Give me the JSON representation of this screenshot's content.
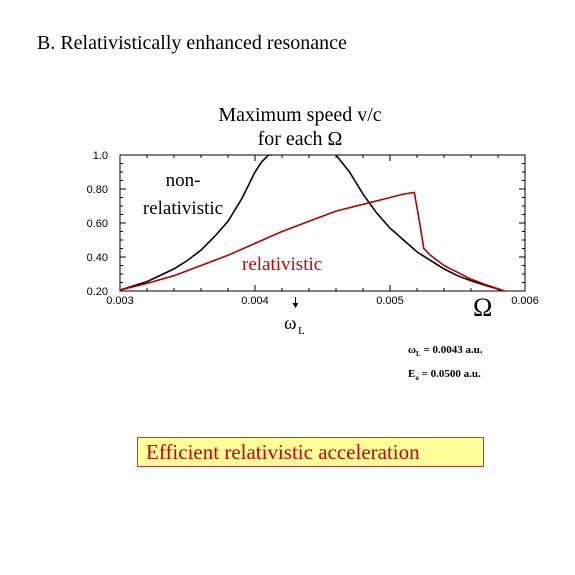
{
  "slide": {
    "title": "B. Relativistically  enhanced resonance",
    "callout": "Efficient relativistic acceleration"
  },
  "params": {
    "omega_L_symbol": "ω",
    "omega_L_sub": "L",
    "omega_L_value": "= 0.0043 a.u.",
    "E0_symbol": "E",
    "E0_sub": "o",
    "E0_value": "= 0.0500 a.u."
  },
  "chart_data": {
    "type": "line",
    "title_lines": [
      "Maximum speed v/c",
      "for each Ω"
    ],
    "xlabel": "Ω",
    "ylabel": "",
    "xlim": [
      0.003,
      0.006
    ],
    "ylim": [
      0.2,
      1.0
    ],
    "xticks": [
      "0.003",
      "0.004",
      "0.005",
      "0.006"
    ],
    "yticks": [
      "0.20",
      "0.40",
      "0.60",
      "0.80",
      "1.0"
    ],
    "grid": false,
    "annotations": {
      "marker_label": "ω",
      "marker_sub": "L",
      "marker_x": 0.0043,
      "nonrel_line1": "non-",
      "nonrel_line2": "relativistic",
      "rel_label": "relativistic"
    },
    "series": [
      {
        "name": "non-relativistic",
        "color": "#000000",
        "segments": [
          {
            "x": [
              0.003,
              0.0032,
              0.0034,
              0.0035,
              0.0036,
              0.0037,
              0.0038,
              0.0039,
              0.00395,
              0.004,
              0.00405,
              0.0041,
              0.00413
            ],
            "y": [
              0.205,
              0.255,
              0.33,
              0.38,
              0.44,
              0.52,
              0.61,
              0.74,
              0.82,
              0.9,
              0.96,
              1.0,
              1.0
            ]
          },
          {
            "x": [
              0.0046,
              0.0047,
              0.0048,
              0.0049,
              0.005,
              0.0051,
              0.0052,
              0.0053,
              0.0054,
              0.0055,
              0.0056,
              0.0057,
              0.00585
            ],
            "y": [
              1.0,
              0.9,
              0.77,
              0.66,
              0.57,
              0.5,
              0.43,
              0.38,
              0.33,
              0.29,
              0.26,
              0.235,
              0.2
            ]
          }
        ]
      },
      {
        "name": "relativistic",
        "color": "#b00000",
        "segments": [
          {
            "x": [
              0.003,
              0.0032,
              0.0034,
              0.0036,
              0.0038,
              0.004,
              0.0042,
              0.0044,
              0.0046,
              0.0048,
              0.005,
              0.0051,
              0.00518,
              0.00522,
              0.00525,
              0.0053,
              0.0054,
              0.0055,
              0.0056,
              0.0057,
              0.00585
            ],
            "y": [
              0.205,
              0.245,
              0.29,
              0.35,
              0.41,
              0.48,
              0.55,
              0.61,
              0.67,
              0.71,
              0.75,
              0.77,
              0.78,
              0.6,
              0.45,
              0.41,
              0.35,
              0.31,
              0.27,
              0.24,
              0.2
            ]
          }
        ]
      }
    ]
  }
}
